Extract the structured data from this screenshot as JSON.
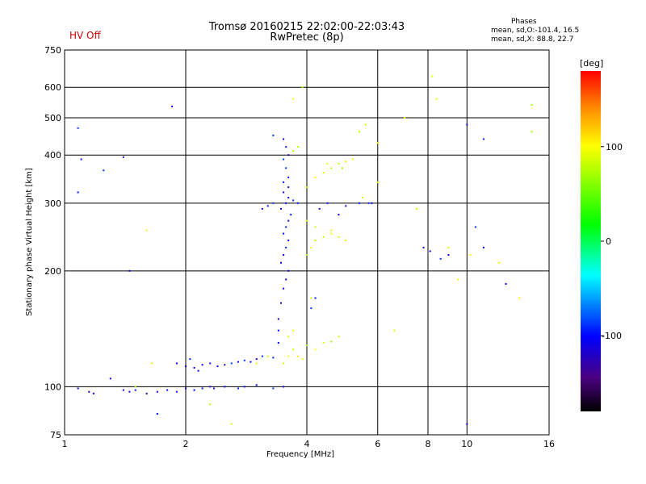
{
  "status": {
    "hv": "HV Off"
  },
  "phase_box": {
    "heading": "Phases",
    "o_line": "mean, sd,O:-101.4, 16.5",
    "x_line": "mean, sd,X:  88.8, 22.7"
  },
  "colorbar": {
    "unit": "[deg]",
    "tick_labels": [
      "100",
      "0",
      "-100"
    ],
    "tick_values": [
      100,
      0,
      -100
    ],
    "range": [
      -180,
      180
    ]
  },
  "chart_data": {
    "type": "scatter",
    "title": "Tromsø 20160215 22:02:00-22:03:43",
    "subtitle": "RwPretec (8p)",
    "xlabel": "Frequency [MHz]",
    "ylabel": "Stationary phase Virtual Height [km]",
    "xscale": "log",
    "yscale": "log",
    "xlim": [
      1,
      16
    ],
    "ylim": [
      75,
      750
    ],
    "x_ticks": [
      1,
      2,
      4,
      6,
      8,
      10,
      16
    ],
    "x_tick_labels": [
      "1",
      "2",
      "4",
      "6",
      "8",
      "10",
      "16"
    ],
    "y_ticks": [
      75,
      100,
      200,
      300,
      400,
      500,
      600,
      750
    ],
    "y_tick_labels": [
      "75",
      "100",
      "200",
      "300",
      "400",
      "500",
      "600",
      "750"
    ],
    "grid": true,
    "colorbar_placement": "right",
    "point_groups": [
      {
        "name": "O-mode",
        "phase_mean": -101.4,
        "phase_sd": 16.5,
        "points": [
          [
            1.08,
            99
          ],
          [
            1.15,
            97
          ],
          [
            1.18,
            96
          ],
          [
            1.3,
            105
          ],
          [
            1.4,
            98
          ],
          [
            1.45,
            97
          ],
          [
            1.5,
            98
          ],
          [
            1.6,
            96
          ],
          [
            1.7,
            97
          ],
          [
            1.8,
            98
          ],
          [
            1.9,
            97
          ],
          [
            2.0,
            99
          ],
          [
            2.1,
            98
          ],
          [
            2.2,
            99
          ],
          [
            2.3,
            100
          ],
          [
            2.5,
            100
          ],
          [
            2.8,
            100
          ],
          [
            3.0,
            101
          ],
          [
            3.3,
            99
          ],
          [
            3.5,
            100
          ],
          [
            1.9,
            115
          ],
          [
            2.0,
            113
          ],
          [
            2.05,
            118
          ],
          [
            2.1,
            112
          ],
          [
            2.15,
            110
          ],
          [
            2.2,
            114
          ],
          [
            2.3,
            115
          ],
          [
            2.4,
            113
          ],
          [
            2.5,
            114
          ],
          [
            2.6,
            115
          ],
          [
            2.7,
            116
          ],
          [
            2.8,
            117
          ],
          [
            2.9,
            116
          ],
          [
            3.0,
            118
          ],
          [
            3.1,
            120
          ],
          [
            3.3,
            119
          ],
          [
            3.4,
            130
          ],
          [
            3.4,
            140
          ],
          [
            3.4,
            150
          ],
          [
            3.45,
            165
          ],
          [
            3.5,
            180
          ],
          [
            3.55,
            190
          ],
          [
            3.6,
            200
          ],
          [
            3.45,
            210
          ],
          [
            3.5,
            220
          ],
          [
            3.55,
            230
          ],
          [
            3.6,
            240
          ],
          [
            3.5,
            250
          ],
          [
            3.55,
            260
          ],
          [
            3.6,
            270
          ],
          [
            3.65,
            280
          ],
          [
            3.45,
            290
          ],
          [
            3.55,
            300
          ],
          [
            3.6,
            310
          ],
          [
            3.3,
            300
          ],
          [
            3.2,
            295
          ],
          [
            3.1,
            290
          ],
          [
            3.7,
            305
          ],
          [
            3.8,
            300
          ],
          [
            3.5,
            320
          ],
          [
            3.6,
            330
          ],
          [
            3.5,
            340
          ],
          [
            3.6,
            350
          ],
          [
            3.55,
            370
          ],
          [
            3.5,
            390
          ],
          [
            3.6,
            400
          ],
          [
            3.55,
            420
          ],
          [
            3.5,
            440
          ],
          [
            3.3,
            450
          ],
          [
            4.3,
            290
          ],
          [
            4.5,
            300
          ],
          [
            4.8,
            280
          ],
          [
            5.0,
            295
          ],
          [
            5.4,
            300
          ],
          [
            5.7,
            300
          ],
          [
            4.2,
            170
          ],
          [
            4.1,
            160
          ],
          [
            1.08,
            470
          ],
          [
            1.1,
            390
          ],
          [
            1.08,
            320
          ],
          [
            1.4,
            395
          ],
          [
            1.25,
            365
          ],
          [
            1.85,
            535
          ],
          [
            1.45,
            200
          ],
          [
            7.8,
            230
          ],
          [
            8.1,
            225
          ],
          [
            8.6,
            215
          ],
          [
            10.0,
            480
          ],
          [
            10.5,
            260
          ],
          [
            11.0,
            230
          ],
          [
            12.5,
            185
          ],
          [
            11.0,
            440
          ],
          [
            5.8,
            300
          ],
          [
            9.0,
            220
          ],
          [
            2.35,
            99
          ],
          [
            2.7,
            99
          ],
          [
            10.0,
            80
          ],
          [
            1.7,
            85
          ]
        ]
      },
      {
        "name": "X-mode",
        "phase_mean": 88.8,
        "phase_sd": 22.7,
        "points": [
          [
            3.5,
            115
          ],
          [
            3.6,
            120
          ],
          [
            3.7,
            125
          ],
          [
            3.8,
            120
          ],
          [
            3.9,
            118
          ],
          [
            4.0,
            128
          ],
          [
            4.2,
            125
          ],
          [
            4.4,
            130
          ],
          [
            4.6,
            131
          ],
          [
            4.8,
            135
          ],
          [
            3.6,
            135
          ],
          [
            3.7,
            140
          ],
          [
            4.0,
            220
          ],
          [
            4.1,
            230
          ],
          [
            4.2,
            240
          ],
          [
            4.4,
            245
          ],
          [
            4.6,
            250
          ],
          [
            4.8,
            245
          ],
          [
            5.0,
            240
          ],
          [
            4.2,
            350
          ],
          [
            4.4,
            360
          ],
          [
            4.6,
            370
          ],
          [
            4.8,
            380
          ],
          [
            5.0,
            385
          ],
          [
            5.2,
            390
          ],
          [
            4.5,
            380
          ],
          [
            4.9,
            370
          ],
          [
            4.0,
            330
          ],
          [
            4.0,
            270
          ],
          [
            4.2,
            260
          ],
          [
            4.6,
            255
          ],
          [
            5.4,
            460
          ],
          [
            5.6,
            480
          ],
          [
            6.0,
            430
          ],
          [
            3.7,
            410
          ],
          [
            3.8,
            420
          ],
          [
            7.0,
            500
          ],
          [
            7.5,
            290
          ],
          [
            8.4,
            560
          ],
          [
            9.0,
            230
          ],
          [
            9.5,
            190
          ],
          [
            10.2,
            220
          ],
          [
            12.0,
            210
          ],
          [
            13.5,
            170
          ],
          [
            14.5,
            540
          ],
          [
            14.5,
            460
          ],
          [
            8.2,
            640
          ],
          [
            1.5,
            100
          ],
          [
            1.65,
            115
          ],
          [
            1.6,
            255
          ],
          [
            2.3,
            90
          ],
          [
            2.6,
            80
          ],
          [
            3.2,
            120
          ],
          [
            3.0,
            115
          ],
          [
            3.7,
            560
          ],
          [
            3.9,
            600
          ],
          [
            6.6,
            140
          ],
          [
            6.0,
            340
          ],
          [
            5.5,
            310
          ],
          [
            4.1,
            170
          ]
        ]
      }
    ]
  }
}
